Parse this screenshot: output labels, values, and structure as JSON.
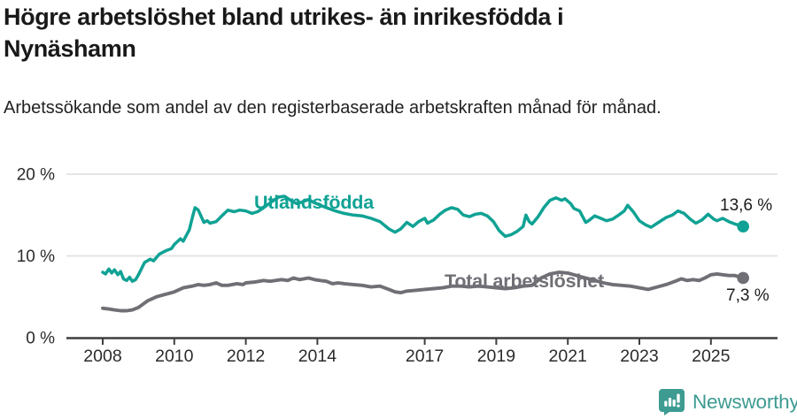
{
  "header": {
    "title": "Högre arbetslöshet bland utrikes- än inrikesfödda i Nynäshamn",
    "subtitle": "Arbetssökande som andel av den registerbaserade arbetskraften månad för månad."
  },
  "chart_data": {
    "type": "line",
    "title": "Högre arbetslöshet bland utrikes- än inrikesfödda i Nynäshamn",
    "subtitle": "Arbetssökande som andel av den registerbaserade arbetskraften månad för månad.",
    "unit": "%",
    "grid": "horizontal",
    "legend": "inline-labels",
    "x_axis": {
      "unit": "year",
      "tick_years": [
        2008,
        2010,
        2012,
        2014,
        2017,
        2019,
        2021,
        2023,
        2025
      ],
      "tick_labels": [
        "2008",
        "2010",
        "2012",
        "2014",
        "2017",
        "2019",
        "2021",
        "2023",
        "2025"
      ],
      "range": [
        2007.0,
        2026.9
      ]
    },
    "y_axis": {
      "tick_values": [
        0,
        10,
        20
      ],
      "tick_labels": [
        "0 %",
        "10 %",
        "20 %"
      ],
      "range": [
        0,
        21.7
      ]
    },
    "series": [
      {
        "name": "Utlandsfödda",
        "color": "#0fa294",
        "end_label": "13,6 %",
        "end_value": 13.6,
        "points": [
          [
            2008.0,
            8.0
          ],
          [
            2008.08,
            7.8
          ],
          [
            2008.17,
            8.4
          ],
          [
            2008.25,
            7.9
          ],
          [
            2008.33,
            8.3
          ],
          [
            2008.42,
            7.7
          ],
          [
            2008.5,
            8.1
          ],
          [
            2008.58,
            7.2
          ],
          [
            2008.67,
            7.0
          ],
          [
            2008.75,
            7.4
          ],
          [
            2008.83,
            6.9
          ],
          [
            2008.92,
            7.1
          ],
          [
            2009.0,
            7.7
          ],
          [
            2009.17,
            9.2
          ],
          [
            2009.33,
            9.6
          ],
          [
            2009.42,
            9.4
          ],
          [
            2009.58,
            10.2
          ],
          [
            2009.75,
            10.6
          ],
          [
            2009.92,
            10.9
          ],
          [
            2010.0,
            11.4
          ],
          [
            2010.17,
            12.1
          ],
          [
            2010.25,
            11.8
          ],
          [
            2010.42,
            13.2
          ],
          [
            2010.5,
            14.6
          ],
          [
            2010.58,
            15.9
          ],
          [
            2010.67,
            15.6
          ],
          [
            2010.83,
            14.1
          ],
          [
            2010.92,
            14.3
          ],
          [
            2011.0,
            14.0
          ],
          [
            2011.17,
            14.2
          ],
          [
            2011.33,
            14.9
          ],
          [
            2011.5,
            15.6
          ],
          [
            2011.67,
            15.4
          ],
          [
            2011.83,
            15.6
          ],
          [
            2012.0,
            15.5
          ],
          [
            2012.17,
            15.2
          ],
          [
            2012.33,
            15.4
          ],
          [
            2012.5,
            15.9
          ],
          [
            2012.75,
            16.7
          ],
          [
            2012.92,
            17.2
          ],
          [
            2013.08,
            17.3
          ],
          [
            2013.25,
            16.8
          ],
          [
            2013.42,
            16.4
          ],
          [
            2013.58,
            16.6
          ],
          [
            2013.75,
            16.9
          ],
          [
            2013.92,
            16.5
          ],
          [
            2014.08,
            16.2
          ],
          [
            2014.25,
            15.9
          ],
          [
            2014.5,
            15.5
          ],
          [
            2014.75,
            15.2
          ],
          [
            2015.0,
            15.0
          ],
          [
            2015.25,
            14.9
          ],
          [
            2015.5,
            14.6
          ],
          [
            2015.75,
            14.2
          ],
          [
            2016.0,
            13.3
          ],
          [
            2016.17,
            12.9
          ],
          [
            2016.33,
            13.3
          ],
          [
            2016.5,
            14.1
          ],
          [
            2016.67,
            13.6
          ],
          [
            2016.83,
            14.2
          ],
          [
            2017.0,
            14.6
          ],
          [
            2017.08,
            14.0
          ],
          [
            2017.25,
            14.4
          ],
          [
            2017.42,
            15.1
          ],
          [
            2017.58,
            15.6
          ],
          [
            2017.75,
            15.9
          ],
          [
            2017.92,
            15.7
          ],
          [
            2018.08,
            15.0
          ],
          [
            2018.25,
            14.8
          ],
          [
            2018.42,
            15.1
          ],
          [
            2018.58,
            15.2
          ],
          [
            2018.75,
            14.9
          ],
          [
            2018.92,
            14.2
          ],
          [
            2019.08,
            13.1
          ],
          [
            2019.25,
            12.4
          ],
          [
            2019.42,
            12.6
          ],
          [
            2019.58,
            13.0
          ],
          [
            2019.75,
            13.6
          ],
          [
            2019.83,
            15.0
          ],
          [
            2019.92,
            14.2
          ],
          [
            2020.0,
            13.9
          ],
          [
            2020.17,
            14.8
          ],
          [
            2020.33,
            15.9
          ],
          [
            2020.5,
            16.8
          ],
          [
            2020.67,
            17.1
          ],
          [
            2020.83,
            16.8
          ],
          [
            2020.92,
            17.0
          ],
          [
            2021.08,
            16.4
          ],
          [
            2021.17,
            15.8
          ],
          [
            2021.33,
            15.5
          ],
          [
            2021.5,
            14.1
          ],
          [
            2021.58,
            14.3
          ],
          [
            2021.75,
            14.9
          ],
          [
            2021.92,
            14.6
          ],
          [
            2022.08,
            14.3
          ],
          [
            2022.25,
            14.5
          ],
          [
            2022.42,
            15.0
          ],
          [
            2022.58,
            15.5
          ],
          [
            2022.67,
            16.2
          ],
          [
            2022.83,
            15.4
          ],
          [
            2023.0,
            14.3
          ],
          [
            2023.17,
            13.8
          ],
          [
            2023.33,
            13.5
          ],
          [
            2023.5,
            14.0
          ],
          [
            2023.75,
            14.7
          ],
          [
            2023.92,
            15.0
          ],
          [
            2024.08,
            15.5
          ],
          [
            2024.25,
            15.2
          ],
          [
            2024.42,
            14.5
          ],
          [
            2024.58,
            14.0
          ],
          [
            2024.75,
            14.4
          ],
          [
            2024.92,
            15.1
          ],
          [
            2025.08,
            14.5
          ],
          [
            2025.17,
            14.3
          ],
          [
            2025.33,
            14.6
          ],
          [
            2025.5,
            14.2
          ],
          [
            2025.67,
            13.9
          ],
          [
            2025.9,
            13.6
          ]
        ]
      },
      {
        "name": "Total arbetslöshet",
        "color": "#6f6f75",
        "end_label": "7,3 %",
        "end_value": 7.3,
        "points": [
          [
            2008.0,
            3.6
          ],
          [
            2008.17,
            3.5
          ],
          [
            2008.33,
            3.4
          ],
          [
            2008.5,
            3.3
          ],
          [
            2008.67,
            3.3
          ],
          [
            2008.83,
            3.4
          ],
          [
            2009.0,
            3.7
          ],
          [
            2009.25,
            4.5
          ],
          [
            2009.5,
            5.0
          ],
          [
            2009.75,
            5.3
          ],
          [
            2010.0,
            5.6
          ],
          [
            2010.25,
            6.1
          ],
          [
            2010.5,
            6.3
          ],
          [
            2010.67,
            6.5
          ],
          [
            2010.83,
            6.4
          ],
          [
            2011.0,
            6.5
          ],
          [
            2011.17,
            6.7
          ],
          [
            2011.33,
            6.4
          ],
          [
            2011.5,
            6.4
          ],
          [
            2011.75,
            6.6
          ],
          [
            2011.92,
            6.5
          ],
          [
            2012.0,
            6.7
          ],
          [
            2012.25,
            6.8
          ],
          [
            2012.5,
            7.0
          ],
          [
            2012.67,
            6.9
          ],
          [
            2012.83,
            7.0
          ],
          [
            2013.0,
            7.1
          ],
          [
            2013.17,
            7.0
          ],
          [
            2013.33,
            7.3
          ],
          [
            2013.5,
            7.1
          ],
          [
            2013.75,
            7.3
          ],
          [
            2013.92,
            7.1
          ],
          [
            2014.08,
            7.0
          ],
          [
            2014.25,
            6.9
          ],
          [
            2014.42,
            6.6
          ],
          [
            2014.58,
            6.7
          ],
          [
            2014.75,
            6.6
          ],
          [
            2015.0,
            6.5
          ],
          [
            2015.25,
            6.4
          ],
          [
            2015.5,
            6.2
          ],
          [
            2015.75,
            6.3
          ],
          [
            2016.0,
            5.9
          ],
          [
            2016.17,
            5.6
          ],
          [
            2016.33,
            5.5
          ],
          [
            2016.5,
            5.7
          ],
          [
            2016.75,
            5.8
          ],
          [
            2017.0,
            5.9
          ],
          [
            2017.25,
            6.0
          ],
          [
            2017.5,
            6.1
          ],
          [
            2017.75,
            6.3
          ],
          [
            2018.0,
            6.3
          ],
          [
            2018.25,
            6.2
          ],
          [
            2018.5,
            6.3
          ],
          [
            2018.75,
            6.2
          ],
          [
            2019.0,
            6.1
          ],
          [
            2019.25,
            6.0
          ],
          [
            2019.5,
            6.1
          ],
          [
            2019.75,
            6.3
          ],
          [
            2020.0,
            6.4
          ],
          [
            2020.25,
            7.3
          ],
          [
            2020.5,
            7.8
          ],
          [
            2020.75,
            8.0
          ],
          [
            2021.0,
            7.9
          ],
          [
            2021.25,
            7.6
          ],
          [
            2021.5,
            7.3
          ],
          [
            2021.75,
            7.0
          ],
          [
            2022.0,
            6.7
          ],
          [
            2022.25,
            6.5
          ],
          [
            2022.5,
            6.4
          ],
          [
            2022.75,
            6.3
          ],
          [
            2023.0,
            6.1
          ],
          [
            2023.25,
            5.9
          ],
          [
            2023.5,
            6.2
          ],
          [
            2023.75,
            6.5
          ],
          [
            2024.0,
            6.9
          ],
          [
            2024.17,
            7.2
          ],
          [
            2024.33,
            7.0
          ],
          [
            2024.5,
            7.1
          ],
          [
            2024.67,
            7.0
          ],
          [
            2024.83,
            7.3
          ],
          [
            2025.0,
            7.7
          ],
          [
            2025.17,
            7.8
          ],
          [
            2025.33,
            7.7
          ],
          [
            2025.5,
            7.6
          ],
          [
            2025.67,
            7.6
          ],
          [
            2025.9,
            7.3
          ]
        ]
      }
    ],
    "colors": {
      "grid": "#dedede",
      "axis": "#3f3f3f",
      "tick_text": "#2b2b2b",
      "end_label_text": "#1c1c1c"
    }
  },
  "footer": {
    "brand": "Newsworthy",
    "brand_color": "#3d9b92",
    "logo_icon": "bar-chart-speech-bubble-icon"
  }
}
